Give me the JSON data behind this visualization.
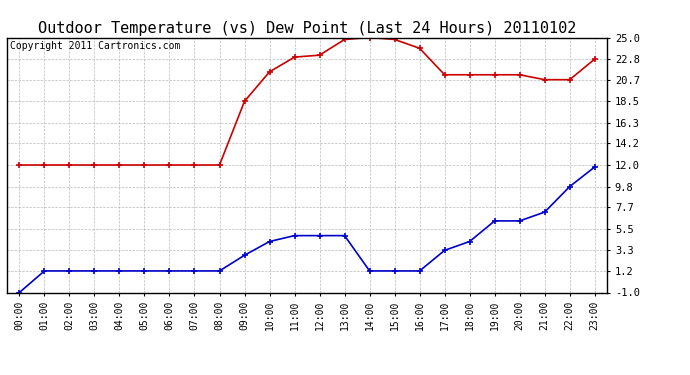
{
  "title": "Outdoor Temperature (vs) Dew Point (Last 24 Hours) 20110102",
  "copyright_text": "Copyright 2011 Cartronics.com",
  "x_labels": [
    "00:00",
    "01:00",
    "02:00",
    "03:00",
    "04:00",
    "05:00",
    "06:00",
    "07:00",
    "08:00",
    "09:00",
    "10:00",
    "11:00",
    "12:00",
    "13:00",
    "14:00",
    "15:00",
    "16:00",
    "17:00",
    "18:00",
    "19:00",
    "20:00",
    "21:00",
    "22:00",
    "23:00"
  ],
  "y_ticks": [
    -1.0,
    1.2,
    3.3,
    5.5,
    7.7,
    9.8,
    12.0,
    14.2,
    16.3,
    18.5,
    20.7,
    22.8,
    25.0
  ],
  "ylim": [
    -1.0,
    25.0
  ],
  "temp_data": [
    12.0,
    12.0,
    12.0,
    12.0,
    12.0,
    12.0,
    12.0,
    12.0,
    12.0,
    18.5,
    21.5,
    23.0,
    23.2,
    24.8,
    25.0,
    24.8,
    23.9,
    21.2,
    21.2,
    21.2,
    21.2,
    20.7,
    20.7,
    22.8
  ],
  "dew_data": [
    -1.0,
    1.2,
    1.2,
    1.2,
    1.2,
    1.2,
    1.2,
    1.2,
    1.2,
    2.8,
    4.2,
    4.8,
    4.8,
    4.8,
    1.2,
    1.2,
    1.2,
    3.3,
    4.2,
    6.3,
    6.3,
    7.2,
    9.8,
    11.8
  ],
  "temp_color": "#cc0000",
  "dew_color": "#0000cc",
  "background_color": "#ffffff",
  "plot_bg_color": "#ffffff",
  "grid_color": "#aaaaaa",
  "title_fontsize": 11,
  "copyright_fontsize": 7,
  "tick_fontsize": 7.5,
  "xtick_fontsize": 7
}
